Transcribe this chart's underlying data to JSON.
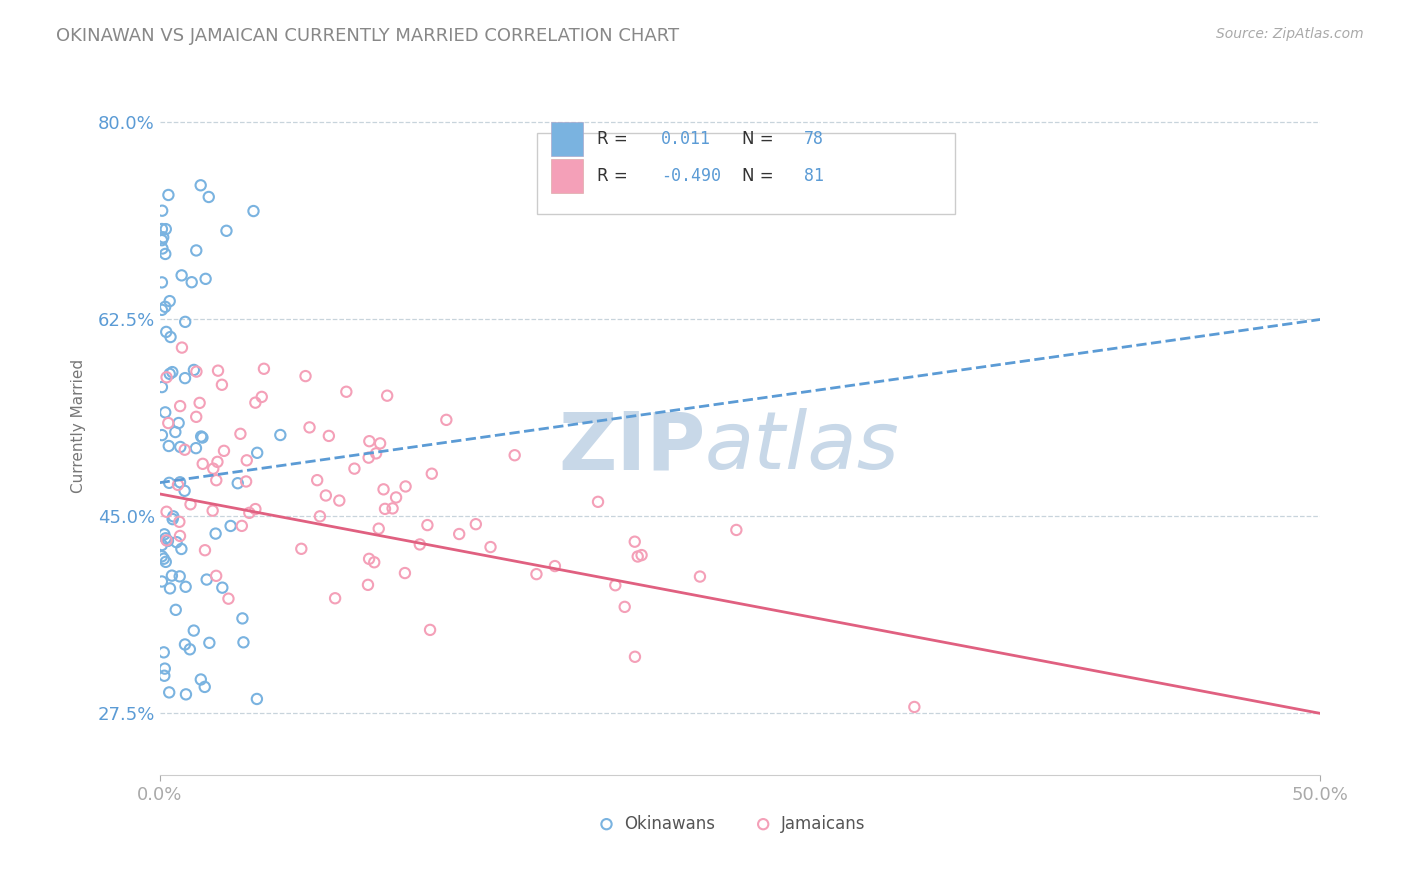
{
  "title": "OKINAWAN VS JAMAICAN CURRENTLY MARRIED CORRELATION CHART",
  "source": "Source: ZipAtlas.com",
  "ylabel_label": "Currently Married",
  "xmin": 0.0,
  "xmax": 0.5,
  "ymin": 0.22,
  "ymax": 0.84,
  "yticks": [
    0.275,
    0.45,
    0.625,
    0.8
  ],
  "ytick_labels": [
    "27.5%",
    "45.0%",
    "62.5%",
    "80.0%"
  ],
  "okinawan_scatter_color": "#7ab3e0",
  "jamaican_scatter_color": "#f4a0b8",
  "okinawan_line_color": "#5b9bd5",
  "jamaican_line_color": "#e06080",
  "watermark_top": "ZIP",
  "watermark_bot": "atlas",
  "watermark_color": "#c8d8e8",
  "background_color": "#ffffff",
  "grid_color": "#c8d4dc",
  "legend_r1": "R =  0.011",
  "legend_n1": "N = 78",
  "legend_r2": "R = -0.490",
  "legend_n2": "N = 81",
  "legend_label1": "Okinawans",
  "legend_label2": "Jamaicans",
  "title_color": "#888888",
  "source_color": "#aaaaaa",
  "tick_color": "#5b9bd5",
  "xtick_color": "#555555"
}
